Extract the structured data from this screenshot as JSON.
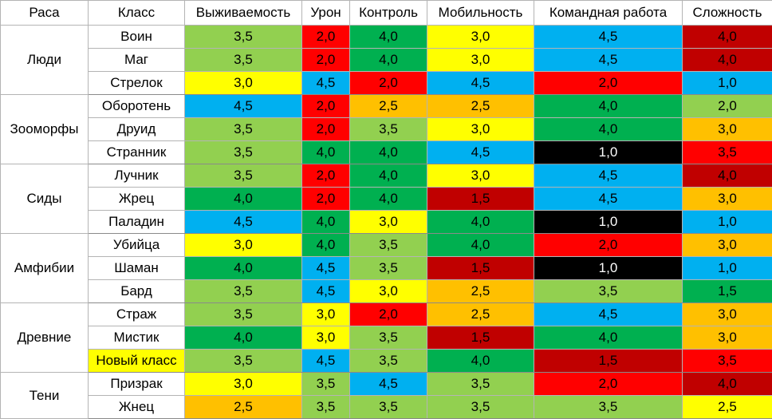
{
  "colors": {
    "light_green": "#92d050",
    "green": "#00b050",
    "yellow": "#ffff00",
    "orange": "#ffc000",
    "red": "#ff0000",
    "dark_red": "#c00000",
    "blue": "#00b0f0",
    "black": "#000000",
    "white": "#ffffff"
  },
  "table": {
    "headers": [
      "Раса",
      "Класс",
      "Выживаемость",
      "Урон",
      "Контроль",
      "Мобильность",
      "Командная работа",
      "Сложность"
    ],
    "groups": [
      {
        "race": "Люди",
        "rows": [
          {
            "class": "Воин",
            "class_color": "white",
            "values": [
              "3,5",
              "2,0",
              "4,0",
              "3,0",
              "4,5",
              "4,0"
            ],
            "colors": [
              "light_green",
              "red",
              "green",
              "yellow",
              "blue",
              "dark_red"
            ]
          },
          {
            "class": "Маг",
            "class_color": "white",
            "values": [
              "3,5",
              "2,0",
              "4,0",
              "3,0",
              "4,5",
              "4,0"
            ],
            "colors": [
              "light_green",
              "red",
              "green",
              "yellow",
              "blue",
              "dark_red"
            ]
          },
          {
            "class": "Стрелок",
            "class_color": "white",
            "values": [
              "3,0",
              "4,5",
              "2,0",
              "4,5",
              "2,0",
              "1,0"
            ],
            "colors": [
              "yellow",
              "blue",
              "red",
              "blue",
              "red",
              "blue"
            ]
          }
        ]
      },
      {
        "race": "Зооморфы",
        "rows": [
          {
            "class": "Оборотень",
            "class_color": "white",
            "values": [
              "4,5",
              "2,0",
              "2,5",
              "2,5",
              "4,0",
              "2,0"
            ],
            "colors": [
              "blue",
              "red",
              "orange",
              "orange",
              "green",
              "light_green"
            ]
          },
          {
            "class": "Друид",
            "class_color": "white",
            "values": [
              "3,5",
              "2,0",
              "3,5",
              "3,0",
              "4,0",
              "3,0"
            ],
            "colors": [
              "light_green",
              "red",
              "light_green",
              "yellow",
              "green",
              "orange"
            ]
          },
          {
            "class": "Странник",
            "class_color": "white",
            "values": [
              "3,5",
              "4,0",
              "4,0",
              "4,5",
              "1,0",
              "3,5"
            ],
            "colors": [
              "light_green",
              "green",
              "green",
              "blue",
              "black",
              "red"
            ]
          }
        ]
      },
      {
        "race": "Сиды",
        "rows": [
          {
            "class": "Лучник",
            "class_color": "white",
            "values": [
              "3,5",
              "2,0",
              "4,0",
              "3,0",
              "4,5",
              "4,0"
            ],
            "colors": [
              "light_green",
              "red",
              "green",
              "yellow",
              "blue",
              "dark_red"
            ]
          },
          {
            "class": "Жрец",
            "class_color": "white",
            "values": [
              "4,0",
              "2,0",
              "4,0",
              "1,5",
              "4,5",
              "3,0"
            ],
            "colors": [
              "green",
              "red",
              "green",
              "dark_red",
              "blue",
              "orange"
            ]
          },
          {
            "class": "Паладин",
            "class_color": "white",
            "values": [
              "4,5",
              "4,0",
              "3,0",
              "4,0",
              "1,0",
              "1,0"
            ],
            "colors": [
              "blue",
              "green",
              "yellow",
              "green",
              "black",
              "blue"
            ]
          }
        ]
      },
      {
        "race": "Амфибии",
        "rows": [
          {
            "class": "Убийца",
            "class_color": "white",
            "values": [
              "3,0",
              "4,0",
              "3,5",
              "4,0",
              "2,0",
              "3,0"
            ],
            "colors": [
              "yellow",
              "green",
              "light_green",
              "green",
              "red",
              "orange"
            ]
          },
          {
            "class": "Шаман",
            "class_color": "white",
            "values": [
              "4,0",
              "4,5",
              "3,5",
              "1,5",
              "1,0",
              "1,0"
            ],
            "colors": [
              "green",
              "blue",
              "light_green",
              "dark_red",
              "black",
              "blue"
            ]
          },
          {
            "class": "Бард",
            "class_color": "white",
            "values": [
              "3,5",
              "4,5",
              "3,0",
              "2,5",
              "3,5",
              "1,5"
            ],
            "colors": [
              "light_green",
              "blue",
              "yellow",
              "orange",
              "light_green",
              "green"
            ]
          }
        ]
      },
      {
        "race": "Древние",
        "rows": [
          {
            "class": "Страж",
            "class_color": "white",
            "values": [
              "3,5",
              "3,0",
              "2,0",
              "2,5",
              "4,5",
              "3,0"
            ],
            "colors": [
              "light_green",
              "yellow",
              "red",
              "orange",
              "blue",
              "orange"
            ]
          },
          {
            "class": "Мистик",
            "class_color": "white",
            "values": [
              "4,0",
              "3,0",
              "3,5",
              "1,5",
              "4,0",
              "3,0"
            ],
            "colors": [
              "green",
              "yellow",
              "light_green",
              "dark_red",
              "green",
              "orange"
            ]
          },
          {
            "class": "Новый класс",
            "class_color": "yellow",
            "values": [
              "3,5",
              "4,5",
              "3,5",
              "4,0",
              "1,5",
              "3,5"
            ],
            "colors": [
              "light_green",
              "blue",
              "light_green",
              "green",
              "dark_red",
              "red"
            ]
          }
        ]
      },
      {
        "race": "Тени",
        "rows": [
          {
            "class": "Призрак",
            "class_color": "white",
            "values": [
              "3,0",
              "3,5",
              "4,5",
              "3,5",
              "2,0",
              "4,0"
            ],
            "colors": [
              "yellow",
              "light_green",
              "blue",
              "light_green",
              "red",
              "dark_red"
            ]
          },
          {
            "class": "Жнец",
            "class_color": "white",
            "values": [
              "2,5",
              "3,5",
              "3,5",
              "3,5",
              "3,5",
              "2,5"
            ],
            "colors": [
              "orange",
              "light_green",
              "light_green",
              "light_green",
              "light_green",
              "yellow"
            ]
          }
        ]
      }
    ]
  }
}
